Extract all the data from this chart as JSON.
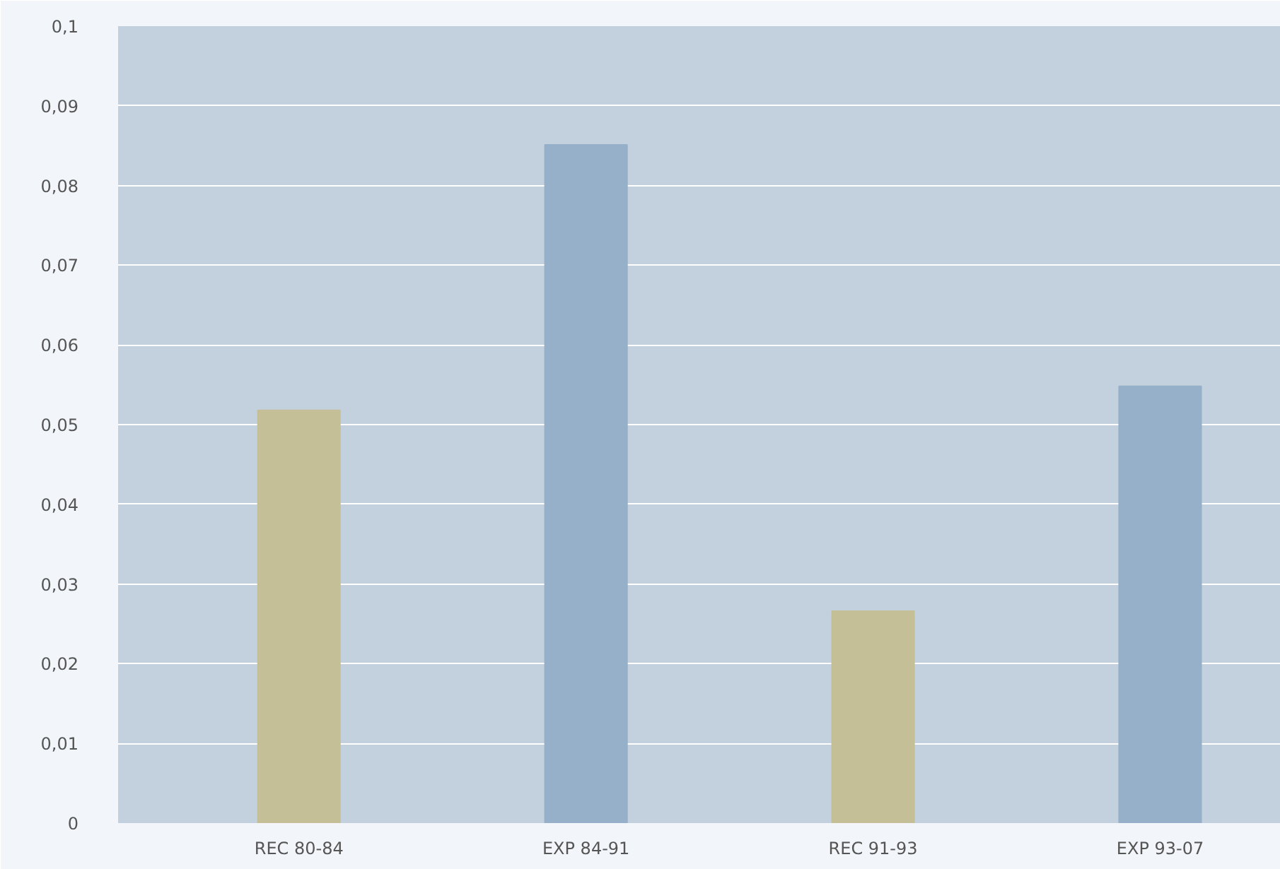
{
  "chart_data": {
    "type": "bar",
    "categories": [
      "REC 80-84",
      "EXP 84-91",
      "REC 91-93",
      "EXP 93-07"
    ],
    "values": [
      0.0518,
      0.0851,
      0.0266,
      0.0548
    ],
    "colors": [
      "#c5bf98",
      "#95b0c8",
      "#c5bf98",
      "#95b0c8"
    ],
    "ylim": [
      0,
      0.1
    ],
    "yticks": [
      {
        "value": 0,
        "label": "0"
      },
      {
        "value": 0.01,
        "label": "0,01"
      },
      {
        "value": 0.02,
        "label": "0,02"
      },
      {
        "value": 0.03,
        "label": "0,03"
      },
      {
        "value": 0.04,
        "label": "0,04"
      },
      {
        "value": 0.05,
        "label": "0,05"
      },
      {
        "value": 0.06,
        "label": "0,06"
      },
      {
        "value": 0.07,
        "label": "0,07"
      },
      {
        "value": 0.08,
        "label": "0,08"
      },
      {
        "value": 0.09,
        "label": "0,09"
      },
      {
        "value": 0.1,
        "label": "0,1"
      }
    ],
    "grid": "y"
  }
}
